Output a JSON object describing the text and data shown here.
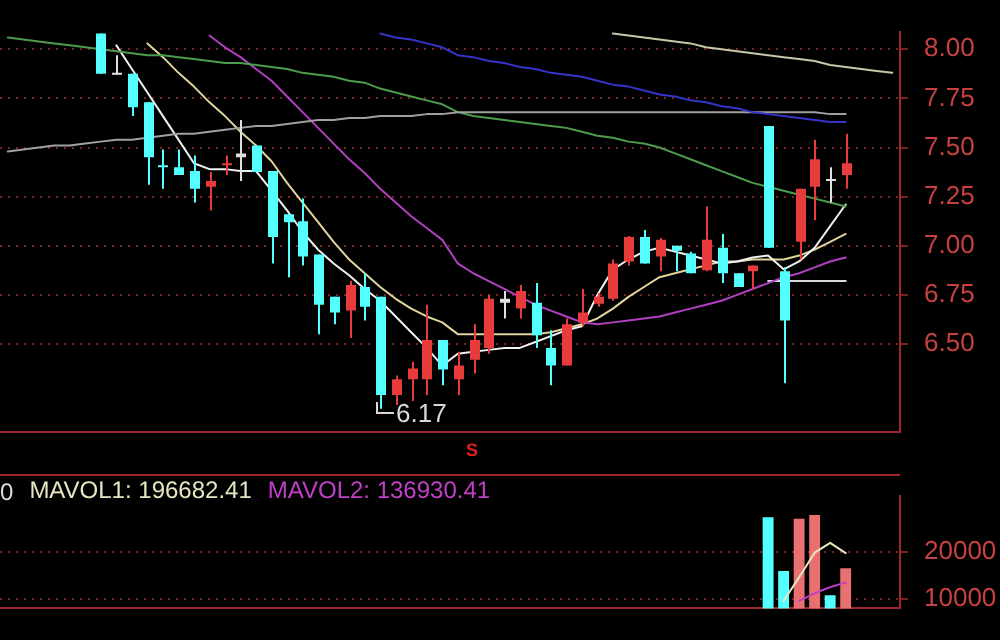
{
  "chart_data": [
    {
      "type": "candlestick",
      "categories": [
        null,
        null,
        null,
        null,
        null,
        null,
        null,
        null,
        null,
        null,
        null,
        null,
        null,
        null,
        null,
        null,
        null,
        null,
        null,
        null,
        null,
        null,
        null,
        null,
        null,
        null,
        null,
        null,
        null,
        null,
        null,
        null,
        null,
        null,
        null,
        null,
        null,
        null,
        null,
        null,
        null,
        null,
        null,
        null,
        null,
        null,
        null,
        null,
        null,
        null,
        null,
        null,
        null,
        null,
        null,
        null,
        null,
        null
      ],
      "ohlc": [
        null,
        null,
        null,
        null,
        null,
        null,
        [
          8.08,
          8.08,
          7.875,
          7.875
        ],
        [
          7.88,
          7.97,
          7.87,
          7.875
        ],
        [
          7.875,
          7.875,
          7.66,
          7.705
        ],
        [
          7.73,
          7.73,
          7.31,
          7.45
        ],
        [
          7.41,
          7.49,
          7.29,
          7.41
        ],
        [
          7.4,
          7.49,
          7.36,
          7.36
        ],
        [
          7.38,
          7.46,
          7.22,
          7.29
        ],
        [
          7.3,
          7.375,
          7.18,
          7.33
        ],
        [
          7.41,
          7.46,
          7.36,
          7.42
        ],
        [
          7.47,
          7.64,
          7.33,
          7.45
        ],
        [
          7.51,
          7.51,
          7.375,
          7.375
        ],
        [
          7.38,
          7.38,
          6.91,
          7.045
        ],
        [
          7.16,
          7.16,
          6.84,
          7.12
        ],
        [
          7.125,
          7.24,
          6.9,
          6.945
        ],
        [
          6.955,
          6.955,
          6.55,
          6.7
        ],
        [
          6.74,
          6.74,
          6.6,
          6.66
        ],
        [
          6.67,
          6.82,
          6.53,
          6.8
        ],
        [
          6.79,
          6.86,
          6.62,
          6.69
        ],
        [
          6.74,
          6.74,
          6.17,
          6.24
        ],
        [
          6.24,
          6.34,
          6.19,
          6.32
        ],
        [
          6.32,
          6.41,
          6.21,
          6.375
        ],
        [
          6.32,
          6.7,
          6.24,
          6.52
        ],
        [
          6.52,
          6.52,
          6.29,
          6.37
        ],
        [
          6.32,
          6.46,
          6.24,
          6.39
        ],
        [
          6.42,
          6.6,
          6.35,
          6.52
        ],
        [
          6.48,
          6.75,
          6.45,
          6.73
        ],
        [
          6.73,
          6.77,
          6.63,
          6.71
        ],
        [
          6.68,
          6.8,
          6.63,
          6.77
        ],
        [
          6.71,
          6.81,
          6.48,
          6.545
        ],
        [
          6.48,
          6.57,
          6.29,
          6.39
        ],
        [
          6.39,
          6.63,
          6.39,
          6.6
        ],
        [
          6.61,
          6.78,
          6.59,
          6.66
        ],
        [
          6.705,
          6.76,
          6.69,
          6.74
        ],
        [
          6.73,
          6.93,
          6.72,
          6.91
        ],
        [
          6.92,
          7.05,
          6.9,
          7.045
        ],
        [
          7.045,
          7.08,
          6.91,
          6.91
        ],
        [
          6.945,
          7.04,
          6.87,
          7.03
        ],
        [
          7.0,
          7.0,
          6.87,
          6.975
        ],
        [
          6.96,
          6.97,
          6.86,
          6.86
        ],
        [
          6.875,
          7.2,
          6.87,
          7.03
        ],
        [
          6.99,
          7.06,
          6.81,
          6.86
        ],
        [
          6.86,
          6.86,
          6.79,
          6.79
        ],
        [
          6.87,
          6.9,
          6.78,
          6.9
        ],
        [
          7.61,
          7.61,
          6.99,
          6.99
        ],
        [
          6.87,
          6.89,
          6.3,
          6.62
        ],
        [
          7.02,
          7.29,
          6.93,
          7.29
        ],
        [
          7.3,
          7.54,
          7.13,
          7.44
        ],
        [
          7.33,
          7.4,
          7.22,
          7.34
        ],
        [
          7.36,
          7.57,
          7.29,
          7.42
        ],
        null,
        null,
        null
      ],
      "colors": [
        null,
        null,
        null,
        null,
        null,
        null,
        "#54ffff",
        "#e0e0e0",
        "#54ffff",
        "#54ffff",
        "#54ffff",
        "#54ffff",
        "#54ffff",
        "#e83c3c",
        "#e83c3c",
        "#e0e0e0",
        "#54ffff",
        "#54ffff",
        "#54ffff",
        "#54ffff",
        "#54ffff",
        "#54ffff",
        "#e83c3c",
        "#54ffff",
        "#54ffff",
        "#e83c3c",
        "#e83c3c",
        "#e83c3c",
        "#54ffff",
        "#e83c3c",
        "#e83c3c",
        "#e83c3c",
        "#e0e0e0",
        "#e83c3c",
        "#54ffff",
        "#54ffff",
        "#e83c3c",
        "#e83c3c",
        "#e83c3c",
        "#e83c3c",
        "#e83c3c",
        "#54ffff",
        "#e83c3c",
        "#54ffff",
        "#54ffff",
        "#e83c3c",
        "#54ffff",
        "#54ffff",
        "#e83c3c",
        "#54ffff",
        "#54ffff",
        "#e83c3c",
        "#e83c3c",
        "#e0e0e0",
        "#e83c3c",
        null,
        null,
        null
      ],
      "series": [
        {
          "type": "line",
          "color": "#c8c8a8",
          "values": [
            null,
            null,
            null,
            null,
            null,
            null,
            null,
            null,
            null,
            null,
            null,
            null,
            null,
            null,
            null,
            null,
            null,
            null,
            null,
            null,
            null,
            null,
            null,
            null,
            null,
            null,
            null,
            null,
            null,
            null,
            null,
            null,
            null,
            null,
            null,
            null,
            null,
            null,
            null,
            8.08,
            8.07,
            8.06,
            8.05,
            8.04,
            8.03,
            8.01,
            8.0,
            7.99,
            7.98,
            7.97,
            7.96,
            7.95,
            7.94,
            7.92,
            7.91,
            7.9,
            7.89,
            7.88
          ]
        },
        {
          "type": "line",
          "color": "#3434c8",
          "values": [
            null,
            null,
            null,
            null,
            null,
            null,
            null,
            null,
            null,
            null,
            null,
            null,
            null,
            null,
            null,
            null,
            null,
            null,
            null,
            null,
            null,
            null,
            null,
            null,
            8.08,
            8.06,
            8.05,
            8.03,
            8.01,
            7.97,
            7.96,
            7.94,
            7.93,
            7.91,
            7.9,
            7.88,
            7.87,
            7.86,
            7.84,
            7.82,
            7.81,
            7.79,
            7.77,
            7.76,
            7.74,
            7.73,
            7.71,
            7.7,
            7.68,
            7.67,
            7.66,
            7.65,
            7.64,
            7.63,
            7.63,
            null,
            null,
            null
          ]
        },
        {
          "type": "line",
          "color": "#a0a0a0",
          "values": [
            7.48,
            7.49,
            7.5,
            7.51,
            7.51,
            7.52,
            7.53,
            7.54,
            7.54,
            7.55,
            7.56,
            7.57,
            7.57,
            7.58,
            7.59,
            7.6,
            7.61,
            7.61,
            7.62,
            7.63,
            7.64,
            7.64,
            7.65,
            7.65,
            7.66,
            7.66,
            7.66,
            7.67,
            7.67,
            7.68,
            7.68,
            7.68,
            7.68,
            7.68,
            7.68,
            7.68,
            7.68,
            7.68,
            7.68,
            7.68,
            7.68,
            7.68,
            7.68,
            7.68,
            7.68,
            7.68,
            7.68,
            7.68,
            7.68,
            7.68,
            7.68,
            7.68,
            7.68,
            7.67,
            7.67,
            null,
            null,
            null
          ]
        },
        {
          "type": "line",
          "color": "#4c9c4c",
          "values": [
            8.06,
            8.05,
            8.04,
            8.03,
            8.02,
            8.01,
            8.0,
            7.99,
            7.98,
            7.97,
            7.97,
            7.96,
            7.95,
            7.94,
            7.93,
            7.93,
            7.92,
            7.91,
            7.9,
            7.88,
            7.87,
            7.86,
            7.84,
            7.83,
            7.8,
            7.78,
            7.76,
            7.74,
            7.72,
            7.68,
            7.66,
            7.65,
            7.64,
            7.63,
            7.62,
            7.61,
            7.6,
            7.58,
            7.56,
            7.55,
            7.53,
            7.52,
            7.5,
            7.47,
            7.44,
            7.41,
            7.38,
            7.35,
            7.32,
            7.3,
            7.28,
            7.26,
            7.24,
            7.22,
            7.2,
            null,
            null,
            null
          ]
        },
        {
          "type": "line",
          "color": "#b040c0",
          "values": [
            null,
            null,
            null,
            null,
            null,
            null,
            null,
            null,
            null,
            null,
            null,
            null,
            null,
            8.07,
            8.01,
            7.96,
            7.9,
            7.84,
            7.76,
            7.68,
            7.6,
            7.52,
            7.44,
            7.37,
            7.29,
            7.22,
            7.15,
            7.09,
            7.03,
            6.91,
            6.86,
            6.82,
            6.78,
            6.74,
            6.7,
            6.67,
            6.64,
            6.61,
            6.6,
            6.61,
            6.62,
            6.63,
            6.64,
            6.66,
            6.68,
            6.7,
            6.72,
            6.75,
            6.78,
            6.81,
            6.84,
            6.86,
            6.89,
            6.92,
            6.94,
            null,
            null,
            null
          ]
        },
        {
          "type": "line",
          "color": "#f0f0f0",
          "values": [
            null,
            null,
            null,
            null,
            null,
            null,
            null,
            8.02,
            7.9,
            7.78,
            7.66,
            7.54,
            7.42,
            7.39,
            7.39,
            7.38,
            7.38,
            7.28,
            7.18,
            7.07,
            6.98,
            6.91,
            6.85,
            6.78,
            6.72,
            6.64,
            6.56,
            6.48,
            6.39,
            6.45,
            6.46,
            6.47,
            6.48,
            6.48,
            6.51,
            6.54,
            6.57,
            6.59,
            6.75,
            6.88,
            6.93,
            6.97,
            6.99,
            6.97,
            6.95,
            6.93,
            6.91,
            6.92,
            6.94,
            6.95,
            6.88,
            6.92,
            6.99,
            7.1,
            7.21,
            null,
            null,
            null
          ]
        },
        {
          "type": "line",
          "color": "#e0d49c",
          "values": [
            null,
            null,
            null,
            null,
            null,
            null,
            null,
            null,
            null,
            8.03,
            7.96,
            7.88,
            7.81,
            7.73,
            7.66,
            7.58,
            7.51,
            7.43,
            7.32,
            7.22,
            7.12,
            7.02,
            6.93,
            6.86,
            6.79,
            6.73,
            6.68,
            6.64,
            6.61,
            6.55,
            6.55,
            6.55,
            6.55,
            6.55,
            6.55,
            6.56,
            6.58,
            6.6,
            6.63,
            6.68,
            6.74,
            6.79,
            6.84,
            6.86,
            6.88,
            6.9,
            6.92,
            6.92,
            6.93,
            6.93,
            6.93,
            6.95,
            6.98,
            7.02,
            7.06,
            null,
            null,
            null
          ]
        },
        {
          "type": "line",
          "color": "#dcdcdc",
          "values": [
            null,
            null,
            null,
            null,
            null,
            null,
            null,
            null,
            null,
            null,
            null,
            null,
            null,
            null,
            null,
            null,
            null,
            null,
            null,
            null,
            null,
            null,
            null,
            null,
            null,
            null,
            null,
            null,
            null,
            null,
            null,
            null,
            null,
            null,
            null,
            null,
            null,
            null,
            null,
            null,
            null,
            null,
            null,
            null,
            null,
            null,
            null,
            null,
            null,
            6.82,
            6.82,
            6.82,
            6.82,
            6.82,
            6.82,
            null,
            null,
            null
          ]
        }
      ],
      "ylim": [
        6.05,
        8.09
      ],
      "yticks": [
        {
          "value": 6.5,
          "label": "6.50"
        },
        {
          "value": 6.75,
          "label": "6.75"
        },
        {
          "value": 7,
          "label": "7.00"
        },
        {
          "value": 7.25,
          "label": "7.25"
        },
        {
          "value": 7.5,
          "label": "7.50"
        },
        {
          "value": 7.75,
          "label": "7.75"
        },
        {
          "value": 8,
          "label": "8.00"
        }
      ],
      "grid": "y",
      "tick_labels": "y",
      "annotations": [
        "6.17",
        "S"
      ]
    },
    {
      "type": "bar",
      "categories": [
        null,
        null,
        null,
        null,
        null,
        null,
        null,
        null,
        null,
        null,
        null,
        null,
        null,
        null,
        null,
        null,
        null,
        null,
        null,
        null,
        null,
        null,
        null,
        null,
        null,
        null,
        null,
        null,
        null,
        null,
        null,
        null,
        null,
        null,
        null,
        null,
        null,
        null,
        null,
        null,
        null,
        null,
        null,
        null,
        null,
        null,
        null,
        null,
        null,
        null,
        null,
        null,
        null,
        null,
        null,
        null,
        null,
        null
      ],
      "series": [
        {
          "type": "bar",
          "colors": [
            null,
            null,
            null,
            null,
            null,
            null,
            null,
            null,
            null,
            null,
            null,
            null,
            null,
            null,
            null,
            null,
            null,
            null,
            null,
            null,
            null,
            null,
            null,
            null,
            null,
            null,
            null,
            null,
            null,
            null,
            null,
            null,
            null,
            null,
            null,
            null,
            null,
            null,
            null,
            null,
            null,
            null,
            null,
            null,
            null,
            null,
            null,
            null,
            null,
            "#54ffff",
            "#54ffff",
            "#e87070",
            "#e87070",
            "#54ffff",
            "#e87070",
            null,
            null,
            null
          ],
          "values": [
            null,
            null,
            null,
            null,
            null,
            null,
            null,
            null,
            null,
            null,
            null,
            null,
            null,
            null,
            null,
            null,
            null,
            null,
            null,
            null,
            null,
            null,
            null,
            null,
            null,
            null,
            null,
            null,
            null,
            null,
            null,
            null,
            null,
            null,
            null,
            null,
            null,
            null,
            null,
            null,
            null,
            null,
            null,
            null,
            null,
            null,
            null,
            null,
            null,
            27300,
            15900,
            27000,
            27800,
            10800,
            16500,
            null,
            null,
            null
          ]
        },
        {
          "type": "line",
          "name": "MAVOL1: 196682.41",
          "color": "#e6e6c0",
          "values": [
            null,
            null,
            null,
            null,
            null,
            null,
            null,
            null,
            null,
            null,
            null,
            null,
            null,
            null,
            null,
            null,
            null,
            null,
            null,
            null,
            null,
            null,
            null,
            null,
            null,
            null,
            null,
            null,
            null,
            null,
            null,
            null,
            null,
            null,
            null,
            null,
            null,
            null,
            null,
            null,
            null,
            null,
            null,
            null,
            null,
            null,
            null,
            null,
            null,
            null,
            9600,
            14600,
            19800,
            21900,
            19700,
            null,
            null,
            null
          ]
        },
        {
          "type": "line",
          "name": "MAVOL2: 136930.41",
          "color": "#c040c8",
          "values": [
            null,
            null,
            null,
            null,
            null,
            null,
            null,
            null,
            null,
            null,
            null,
            null,
            null,
            null,
            null,
            null,
            null,
            null,
            null,
            null,
            null,
            null,
            null,
            null,
            null,
            null,
            null,
            null,
            null,
            null,
            null,
            null,
            null,
            null,
            null,
            null,
            null,
            null,
            null,
            null,
            null,
            null,
            null,
            null,
            null,
            null,
            null,
            null,
            null,
            null,
            null,
            9600,
            11200,
            12500,
            13500,
            null,
            null,
            null
          ]
        }
      ],
      "ylim": [
        8000,
        31900
      ],
      "yticks": [
        10000,
        20000
      ],
      "grid": "y",
      "tick_labels": "y",
      "legend": "top left",
      "annotations": [
        "0"
      ]
    }
  ]
}
